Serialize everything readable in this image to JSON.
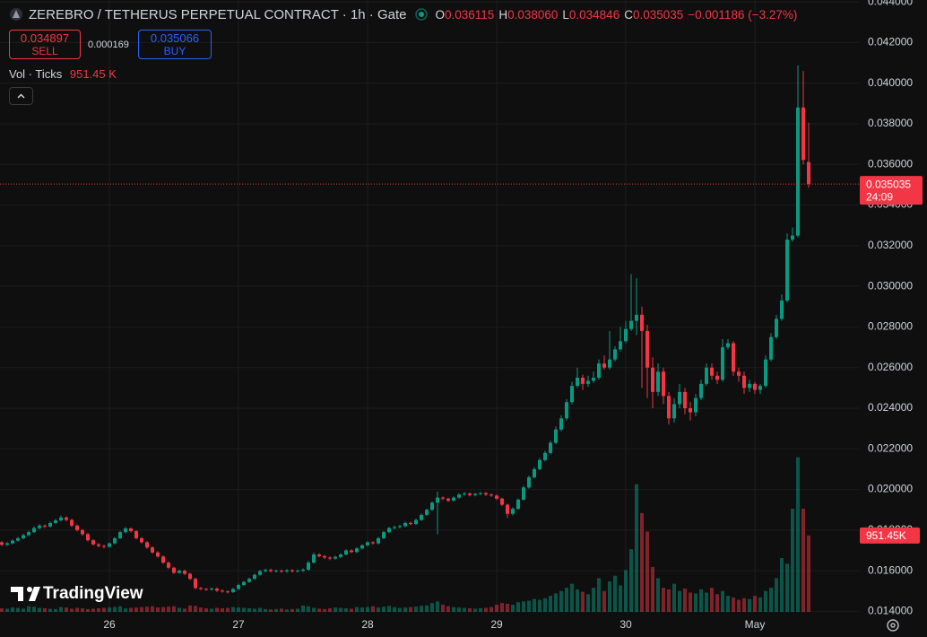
{
  "chart_data": {
    "type": "candlestick",
    "title": "ZEREBRO / TETHERUS PERPETUAL CONTRACT · 1h · Gate",
    "up_color": "#089981",
    "down_color": "#f23645",
    "grid": true,
    "legend": {
      "keys": [
        "O",
        "H",
        "L",
        "C"
      ],
      "value_labels": [
        "0.036115",
        "0.038060",
        "0.034846",
        "0.035035"
      ],
      "change": "−0.001186 (−3.27%)"
    },
    "trade": {
      "sell_price": "0.034897",
      "sell": "SELL",
      "spread": "0.000169",
      "buy_price": "0.035066",
      "buy": "BUY"
    },
    "countdown": "24:09",
    "categories": [
      null,
      null,
      null,
      null,
      null,
      null,
      null,
      null,
      null,
      null,
      null,
      null,
      null,
      null,
      null,
      null,
      null,
      null,
      null,
      null,
      null,
      "26",
      null,
      null,
      null,
      null,
      null,
      null,
      null,
      null,
      null,
      null,
      null,
      null,
      null,
      null,
      null,
      null,
      null,
      null,
      null,
      null,
      null,
      null,
      null,
      "27",
      null,
      null,
      null,
      null,
      null,
      null,
      null,
      null,
      null,
      null,
      null,
      null,
      null,
      null,
      null,
      null,
      null,
      null,
      null,
      null,
      null,
      null,
      null,
      "28",
      null,
      null,
      null,
      null,
      null,
      null,
      null,
      null,
      null,
      null,
      null,
      null,
      null,
      null,
      null,
      null,
      null,
      null,
      null,
      null,
      null,
      null,
      null,
      "29",
      null,
      null,
      null,
      null,
      null,
      null,
      null,
      null,
      null,
      null,
      null,
      null,
      null,
      null,
      null,
      null,
      null,
      null,
      null,
      null,
      null,
      null,
      null,
      "30",
      null,
      null,
      null,
      null,
      null,
      null,
      null,
      null,
      null,
      null,
      null,
      null,
      null,
      null,
      null,
      null,
      null,
      null,
      null,
      null,
      null,
      null,
      null,
      "May",
      null,
      null,
      null,
      null,
      null,
      null,
      null,
      null,
      null,
      null
    ],
    "open": [
      0.01745,
      0.0174,
      0.01728,
      0.01735,
      0.01748,
      0.0176,
      0.01775,
      0.0179,
      0.0181,
      0.01822,
      0.01818,
      0.01835,
      0.01848,
      0.01862,
      0.0185,
      0.01822,
      0.018,
      0.0178,
      0.0175,
      0.0173,
      0.01722,
      0.01718,
      0.01735,
      0.0176,
      0.0179,
      0.01808,
      0.01795,
      0.0176,
      0.0174,
      0.01715,
      0.0169,
      0.0167,
      0.0164,
      0.01615,
      0.0159,
      0.016,
      0.01585,
      0.0156,
      0.01515,
      0.0151,
      0.01508,
      0.01512,
      0.01502,
      0.01498,
      0.01495,
      0.0151,
      0.0153,
      0.01545,
      0.0156,
      0.0158,
      0.01598,
      0.01604,
      0.01598,
      0.016,
      0.01596,
      0.01602,
      0.01597,
      0.016,
      0.01605,
      0.0164,
      0.0168,
      0.01672,
      0.01665,
      0.0166,
      0.01668,
      0.0168,
      0.017,
      0.01692,
      0.0171,
      0.01725,
      0.0174,
      0.01735,
      0.0176,
      0.0179,
      0.0181,
      0.01815,
      0.0182,
      0.01835,
      0.0183,
      0.0185,
      0.01875,
      0.019,
      0.01935,
      0.0196,
      0.01955,
      0.01945,
      0.0196,
      0.01975,
      0.0198,
      0.01972,
      0.01978,
      0.01982,
      0.01975,
      0.0197,
      0.01955,
      0.01925,
      0.0188,
      0.01905,
      0.0195,
      0.0201,
      0.0206,
      0.021,
      0.02145,
      0.0218,
      0.0223,
      0.02295,
      0.0235,
      0.0243,
      0.0251,
      0.0255,
      0.0252,
      0.02535,
      0.0255,
      0.0262,
      0.026,
      0.0264,
      0.0269,
      0.0273,
      0.0279,
      0.0283,
      0.0286,
      0.0278,
      0.026,
      0.0248,
      0.0258,
      0.0246,
      0.0235,
      0.0242,
      0.0248,
      0.024,
      0.0238,
      0.0245,
      0.0252,
      0.026,
      0.0256,
      0.0254,
      0.027,
      0.0272,
      0.0258,
      0.0256,
      0.025,
      0.0252,
      0.0249,
      0.0251,
      0.0264,
      0.0275,
      0.0284,
      0.0293,
      0.0323,
      0.0325,
      0.0388,
      0.036115
    ],
    "high": [
      0.01752,
      0.01746,
      0.01741,
      0.01754,
      0.01766,
      0.01782,
      0.01797,
      0.01818,
      0.0183,
      0.01828,
      0.01842,
      0.01855,
      0.01872,
      0.01868,
      0.01856,
      0.01828,
      0.01806,
      0.01786,
      0.01756,
      0.01736,
      0.01728,
      0.0174,
      0.01766,
      0.01796,
      0.01815,
      0.01814,
      0.018,
      0.01766,
      0.01746,
      0.0172,
      0.01696,
      0.01676,
      0.01646,
      0.0162,
      0.01606,
      0.01605,
      0.0159,
      0.01566,
      0.0152,
      0.01516,
      0.01518,
      0.01518,
      0.01508,
      0.01504,
      0.01516,
      0.01536,
      0.0155,
      0.01566,
      0.01586,
      0.01604,
      0.0161,
      0.0161,
      0.01606,
      0.01606,
      0.01608,
      0.01608,
      0.01606,
      0.01612,
      0.01648,
      0.0169,
      0.01686,
      0.01678,
      0.0167,
      0.01674,
      0.01686,
      0.01706,
      0.01706,
      0.01716,
      0.01731,
      0.01746,
      0.01746,
      0.01766,
      0.01796,
      0.01816,
      0.01822,
      0.01826,
      0.01841,
      0.01842,
      0.01856,
      0.01882,
      0.01906,
      0.01942,
      0.0199,
      0.01966,
      0.0196,
      0.01966,
      0.01982,
      0.01988,
      0.01986,
      0.01984,
      0.01988,
      0.01988,
      0.0198,
      0.01976,
      0.0196,
      0.0193,
      0.01912,
      0.01956,
      0.02018,
      0.02068,
      0.0211,
      0.02155,
      0.0219,
      0.0224,
      0.0231,
      0.02365,
      0.02445,
      0.0253,
      0.026,
      0.02565,
      0.0256,
      0.0258,
      0.0264,
      0.0266,
      0.0278,
      0.02705,
      0.028,
      0.0283,
      0.0306,
      0.0304,
      0.029,
      0.0281,
      0.0265,
      0.0262,
      0.026,
      0.0248,
      0.0245,
      0.0252,
      0.025,
      0.0243,
      0.0247,
      0.0254,
      0.0262,
      0.0262,
      0.0258,
      0.0274,
      0.0274,
      0.0273,
      0.026,
      0.0258,
      0.0254,
      0.0253,
      0.0252,
      0.0266,
      0.0277,
      0.0286,
      0.0296,
      0.0326,
      0.0329,
      0.04087,
      0.0406,
      0.03806
    ],
    "low": [
      0.01732,
      0.01722,
      0.01722,
      0.0173,
      0.01742,
      0.01754,
      0.0177,
      0.01785,
      0.01804,
      0.0181,
      0.01812,
      0.0183,
      0.01842,
      0.01843,
      0.01815,
      0.01794,
      0.01772,
      0.01744,
      0.01724,
      0.01715,
      0.0171,
      0.01712,
      0.0173,
      0.01755,
      0.01784,
      0.01788,
      0.01754,
      0.01734,
      0.01708,
      0.01684,
      0.01664,
      0.01634,
      0.01608,
      0.01584,
      0.01584,
      0.01578,
      0.01554,
      0.01508,
      0.01504,
      0.01502,
      0.01502,
      0.01496,
      0.01492,
      0.01488,
      0.0149,
      0.01505,
      0.01525,
      0.0154,
      0.01555,
      0.01575,
      0.01592,
      0.01592,
      0.01592,
      0.0159,
      0.0159,
      0.01591,
      0.01591,
      0.01594,
      0.016,
      0.01635,
      0.01666,
      0.01658,
      0.01652,
      0.01654,
      0.01662,
      0.01675,
      0.01686,
      0.01686,
      0.01704,
      0.0172,
      0.01728,
      0.0173,
      0.01755,
      0.01785,
      0.01804,
      0.01808,
      0.01814,
      0.01824,
      0.01825,
      0.01845,
      0.0187,
      0.01895,
      0.0178,
      0.01948,
      0.01938,
      0.0194,
      0.01955,
      0.0197,
      0.01966,
      0.01966,
      0.01972,
      0.01968,
      0.01964,
      0.01948,
      0.01918,
      0.0186,
      0.01872,
      0.019,
      0.01945,
      0.02004,
      0.02054,
      0.02094,
      0.02138,
      0.02172,
      0.02222,
      0.02286,
      0.0234,
      0.0242,
      0.025,
      0.0249,
      0.02505,
      0.02525,
      0.0254,
      0.0259,
      0.0259,
      0.0263,
      0.0268,
      0.0272,
      0.0278,
      0.0276,
      0.025,
      0.0245,
      0.024,
      0.0246,
      0.0242,
      0.0232,
      0.0233,
      0.024,
      0.0237,
      0.0234,
      0.0236,
      0.0244,
      0.0251,
      0.0254,
      0.0252,
      0.0253,
      0.0269,
      0.0256,
      0.0253,
      0.0247,
      0.0248,
      0.0247,
      0.0247,
      0.025,
      0.0263,
      0.0274,
      0.0283,
      0.0292,
      0.0322,
      0.0324,
      0.036,
      0.034846
    ],
    "close": [
      0.0174,
      0.01728,
      0.01735,
      0.01748,
      0.0176,
      0.01775,
      0.0179,
      0.0181,
      0.01822,
      0.01818,
      0.01835,
      0.01848,
      0.01862,
      0.0185,
      0.01822,
      0.018,
      0.0178,
      0.0175,
      0.0173,
      0.01722,
      0.01718,
      0.01735,
      0.0176,
      0.0179,
      0.01808,
      0.01795,
      0.0176,
      0.0174,
      0.01715,
      0.0169,
      0.0167,
      0.0164,
      0.01615,
      0.0159,
      0.016,
      0.01585,
      0.0156,
      0.01515,
      0.0151,
      0.01508,
      0.01512,
      0.01502,
      0.01498,
      0.01495,
      0.0151,
      0.0153,
      0.01545,
      0.0156,
      0.0158,
      0.01598,
      0.01604,
      0.01598,
      0.016,
      0.01596,
      0.01602,
      0.01597,
      0.016,
      0.01605,
      0.0164,
      0.0168,
      0.01672,
      0.01665,
      0.0166,
      0.01668,
      0.0168,
      0.017,
      0.01692,
      0.0171,
      0.01725,
      0.0174,
      0.01735,
      0.0176,
      0.0179,
      0.0181,
      0.01815,
      0.0182,
      0.01835,
      0.0183,
      0.0185,
      0.01875,
      0.019,
      0.01935,
      0.0196,
      0.01955,
      0.01945,
      0.0196,
      0.01975,
      0.0198,
      0.01972,
      0.01978,
      0.01982,
      0.01975,
      0.0197,
      0.01955,
      0.01925,
      0.0188,
      0.01905,
      0.0195,
      0.0201,
      0.0206,
      0.021,
      0.02145,
      0.0218,
      0.0223,
      0.02295,
      0.0235,
      0.0243,
      0.0251,
      0.0255,
      0.0252,
      0.02535,
      0.0255,
      0.0262,
      0.026,
      0.0264,
      0.0269,
      0.0273,
      0.0279,
      0.0283,
      0.0286,
      0.0278,
      0.026,
      0.0248,
      0.0258,
      0.0246,
      0.0235,
      0.0242,
      0.0248,
      0.024,
      0.0238,
      0.0245,
      0.0252,
      0.026,
      0.0256,
      0.0254,
      0.027,
      0.0272,
      0.0258,
      0.0256,
      0.025,
      0.0252,
      0.0249,
      0.0251,
      0.0264,
      0.0275,
      0.0284,
      0.0293,
      0.0323,
      0.0325,
      0.0388,
      0.036221,
      0.035035
    ],
    "volume": {
      "name": "Vol · Ticks",
      "legend_value": "951.45 K",
      "value_label": "951.45K",
      "axis": "y2",
      "values": [
        60,
        45,
        40,
        55,
        50,
        40,
        70,
        65,
        50,
        45,
        40,
        35,
        60,
        55,
        40,
        50,
        45,
        35,
        40,
        45,
        50,
        55,
        60,
        70,
        45,
        50,
        55,
        60,
        65,
        70,
        55,
        60,
        65,
        70,
        50,
        40,
        80,
        75,
        55,
        45,
        40,
        50,
        45,
        50,
        60,
        55,
        50,
        45,
        40,
        50,
        35,
        30,
        35,
        40,
        30,
        35,
        40,
        80,
        70,
        50,
        40,
        35,
        45,
        55,
        50,
        45,
        40,
        60,
        55,
        60,
        70,
        55,
        65,
        75,
        60,
        50,
        55,
        60,
        65,
        75,
        80,
        110,
        130,
        90,
        70,
        60,
        55,
        50,
        45,
        40,
        45,
        50,
        60,
        90,
        110,
        100,
        90,
        120,
        130,
        140,
        160,
        150,
        170,
        200,
        230,
        260,
        300,
        350,
        280,
        250,
        220,
        300,
        420,
        260,
        380,
        450,
        330,
        520,
        780,
        1590,
        1230,
        1000,
        560,
        420,
        300,
        280,
        350,
        260,
        290,
        240,
        230,
        280,
        240,
        300,
        220,
        260,
        200,
        180,
        150,
        170,
        160,
        200,
        180,
        260,
        300,
        420,
        670,
        600,
        1285,
        1925,
        1285,
        951.45
      ]
    },
    "ylim": [
      0.013975,
      0.044094
    ],
    "y2lim": [
      0,
      2000
    ],
    "yticks": [
      {
        "value": 0.014,
        "label": "0.014000"
      },
      {
        "value": 0.016,
        "label": "0.016000"
      },
      {
        "value": 0.018,
        "label": "0.018000"
      },
      {
        "value": 0.02,
        "label": "0.020000"
      },
      {
        "value": 0.022,
        "label": "0.022000"
      },
      {
        "value": 0.024,
        "label": "0.024000"
      },
      {
        "value": 0.026,
        "label": "0.026000"
      },
      {
        "value": 0.028,
        "label": "0.028000"
      },
      {
        "value": 0.03,
        "label": "0.030000"
      },
      {
        "value": 0.032,
        "label": "0.032000"
      },
      {
        "value": 0.034,
        "label": "0.034000"
      },
      {
        "value": 0.036,
        "label": "0.036000"
      },
      {
        "value": 0.038,
        "label": "0.038000"
      },
      {
        "value": 0.04,
        "label": "0.040000"
      },
      {
        "value": 0.042,
        "label": "0.042000"
      },
      {
        "value": 0.044,
        "label": "0.044000"
      }
    ]
  },
  "branding": "TradingView"
}
